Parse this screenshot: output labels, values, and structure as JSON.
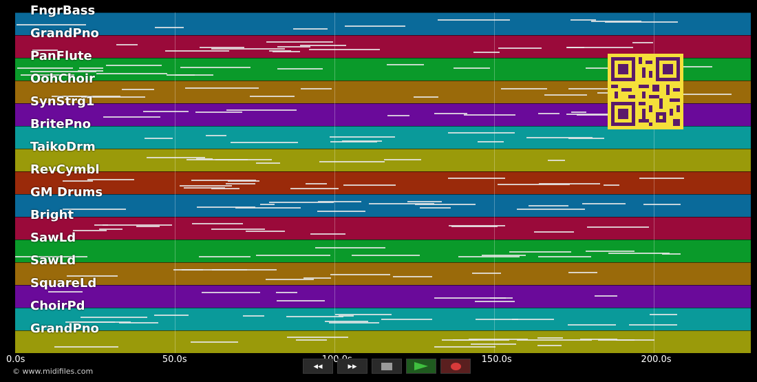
{
  "tracks": [
    {
      "name": "FngrBass",
      "color": "#0a6a9a"
    },
    {
      "name": "GrandPno",
      "color": "#9a0a3a"
    },
    {
      "name": "PanFlute",
      "color": "#0a9a2a"
    },
    {
      "name": "OohChoir",
      "color": "#9a6a0a"
    },
    {
      "name": "SynStrg1",
      "color": "#6a0a9a"
    },
    {
      "name": "BritePno",
      "color": "#0a9a9a"
    },
    {
      "name": "TaikoDrm",
      "color": "#9a9a0a"
    },
    {
      "name": "RevCymbl",
      "color": "#9a2a0a"
    },
    {
      "name": "GM Drums",
      "color": "#0a6a9a"
    },
    {
      "name": "Bright",
      "color": "#9a0a3a"
    },
    {
      "name": "SawLd",
      "color": "#0a9a2a"
    },
    {
      "name": "SawLd",
      "color": "#9a6a0a"
    },
    {
      "name": "SquareLd",
      "color": "#6a0a9a"
    },
    {
      "name": "ChoirPd",
      "color": "#0a9a9a"
    },
    {
      "name": "GrandPno",
      "color": "#9a9a0a"
    }
  ],
  "axis": {
    "ticks": [
      "0.0s",
      "50.0s",
      "100.0s",
      "150.0s",
      "200.0s"
    ],
    "tick_seconds": [
      0,
      50,
      100,
      150,
      200
    ],
    "max_seconds": 230.5
  },
  "credit": "© www.midifiles.com",
  "transport": {
    "rewind_icon": "◂◂",
    "forward_icon": "▸▸"
  },
  "icons": {
    "rewind": "rewind-icon",
    "forward": "fast-forward-icon",
    "stop": "stop-icon",
    "play": "play-icon",
    "record": "record-icon"
  }
}
